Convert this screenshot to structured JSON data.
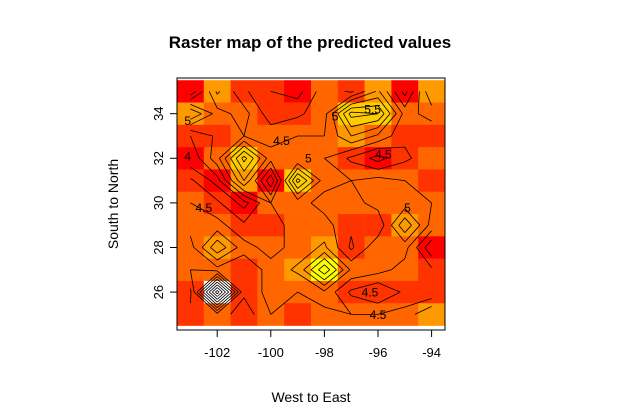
{
  "chart_data": {
    "type": "heatmap",
    "title": "Raster map of the predicted values",
    "xlabel": "West to East",
    "ylabel": "South to North",
    "xlim": [
      -103.5,
      -93.5
    ],
    "ylim": [
      24.3,
      35.6
    ],
    "x_ticks": [
      -102,
      -100,
      -98,
      -96,
      -94
    ],
    "y_ticks": [
      26,
      28,
      30,
      32,
      34
    ],
    "x_tick_labels": [
      "-102",
      "-100",
      "-98",
      "-96",
      "-94"
    ],
    "y_tick_labels": [
      "26",
      "28",
      "30",
      "32",
      "34"
    ],
    "grid": false,
    "legend": "none",
    "color_scale": "heat (red = low, yellow/white = high)",
    "palette": [
      "#ff0000",
      "#ff3300",
      "#ff6600",
      "#ff9900",
      "#ffcc00",
      "#ffff00",
      "#ffffff"
    ],
    "x_centers": [
      -103,
      -102,
      -101,
      -100,
      -99,
      -98,
      -97,
      -96,
      -95,
      -94
    ],
    "y_centers": [
      35,
      34,
      33,
      32,
      31,
      30,
      29,
      28,
      27,
      26,
      25
    ],
    "value_range": [
      3.5,
      6.5
    ],
    "values": [
      [
        3.8,
        4.8,
        4.3,
        4.0,
        3.9,
        4.4,
        4.2,
        4.8,
        3.9,
        5.0
      ],
      [
        5.0,
        4.4,
        4.6,
        4.1,
        4.2,
        4.4,
        5.6,
        5.5,
        4.4,
        4.6
      ],
      [
        4.0,
        4.3,
        4.5,
        4.4,
        4.5,
        4.5,
        5.0,
        4.7,
        4.3,
        4.3
      ],
      [
        3.8,
        4.4,
        5.6,
        4.6,
        4.5,
        4.5,
        4.2,
        3.9,
        4.2,
        4.4
      ],
      [
        4.3,
        3.9,
        5.0,
        3.8,
        5.6,
        4.6,
        4.5,
        4.6,
        4.5,
        4.3
      ],
      [
        4.5,
        4.3,
        3.9,
        4.5,
        4.6,
        4.4,
        4.4,
        4.6,
        4.6,
        4.5
      ],
      [
        4.6,
        4.6,
        4.3,
        4.3,
        4.7,
        4.6,
        4.3,
        4.3,
        5.2,
        4.4
      ],
      [
        4.4,
        5.2,
        4.6,
        4.4,
        4.6,
        4.8,
        4.2,
        4.7,
        4.6,
        3.8
      ],
      [
        4.5,
        4.4,
        4.3,
        4.6,
        4.8,
        5.7,
        4.7,
        4.6,
        4.4,
        4.3
      ],
      [
        4.2,
        6.4,
        4.3,
        4.6,
        4.5,
        4.7,
        4.2,
        4.0,
        4.3,
        4.3
      ],
      [
        4.3,
        4.4,
        4.1,
        4.5,
        4.3,
        4.4,
        4.5,
        4.5,
        4.6,
        5.0
      ]
    ],
    "contour_labels": [
      {
        "text": "5",
        "x": -103.1,
        "y": 33.5
      },
      {
        "text": "4",
        "x": -103.1,
        "y": 31.9
      },
      {
        "text": "4.5",
        "x": -99.6,
        "y": 32.6
      },
      {
        "text": "5",
        "x": -97.6,
        "y": 33.7
      },
      {
        "text": "5.5",
        "x": -96.2,
        "y": 34.0
      },
      {
        "text": "5",
        "x": -98.6,
        "y": 31.8
      },
      {
        "text": "4.5",
        "x": -95.8,
        "y": 32.0
      },
      {
        "text": "4.5",
        "x": -102.5,
        "y": 29.6
      },
      {
        "text": "5",
        "x": -94.9,
        "y": 29.6
      },
      {
        "text": "4.5",
        "x": -96.3,
        "y": 25.8
      },
      {
        "text": "4.5",
        "x": -96.0,
        "y": 24.8
      }
    ]
  }
}
